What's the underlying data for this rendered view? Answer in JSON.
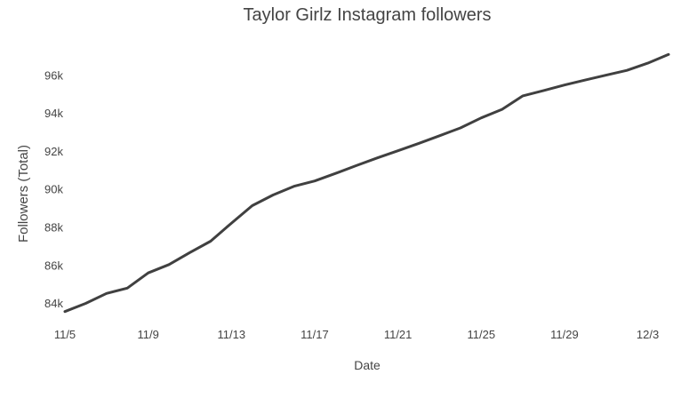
{
  "chart_data": {
    "type": "line",
    "title": "Taylor Girlz Instagram followers",
    "xlabel": "Date",
    "ylabel": "Followers (Total)",
    "x_tick_labels": [
      "11/5",
      "11/9",
      "11/13",
      "11/17",
      "11/21",
      "11/25",
      "11/29",
      "12/3"
    ],
    "y_tick_labels": [
      "84k",
      "86k",
      "88k",
      "90k",
      "92k",
      "94k",
      "96k"
    ],
    "y_ticks": [
      84000,
      86000,
      88000,
      90000,
      92000,
      94000,
      96000
    ],
    "xlim": [
      "2018-11-05",
      "2018-12-04"
    ],
    "ylim": [
      83300,
      97700
    ],
    "grid": false,
    "line_color": "#404040",
    "series": [
      {
        "x": [
          "2018-11-05",
          "2018-11-06",
          "2018-11-07",
          "2018-11-08",
          "2018-11-09",
          "2018-11-10",
          "2018-11-11",
          "2018-11-12",
          "2018-11-13",
          "2018-11-14",
          "2018-11-15",
          "2018-11-16",
          "2018-11-17",
          "2018-11-18",
          "2018-11-19",
          "2018-11-20",
          "2018-11-21",
          "2018-11-22",
          "2018-11-23",
          "2018-11-24",
          "2018-11-25",
          "2018-11-26",
          "2018-11-27",
          "2018-11-28",
          "2018-11-29",
          "2018-11-30",
          "2018-12-01",
          "2018-12-02",
          "2018-12-03",
          "2018-12-04"
        ],
        "values": [
          83550,
          83980,
          84500,
          84780,
          85580,
          86020,
          86650,
          87250,
          88200,
          89120,
          89680,
          90140,
          90420,
          90820,
          91230,
          91630,
          92010,
          92400,
          92800,
          93210,
          93740,
          94190,
          94900,
          95180,
          95470,
          95730,
          95990,
          96240,
          96620,
          97080
        ]
      }
    ]
  }
}
